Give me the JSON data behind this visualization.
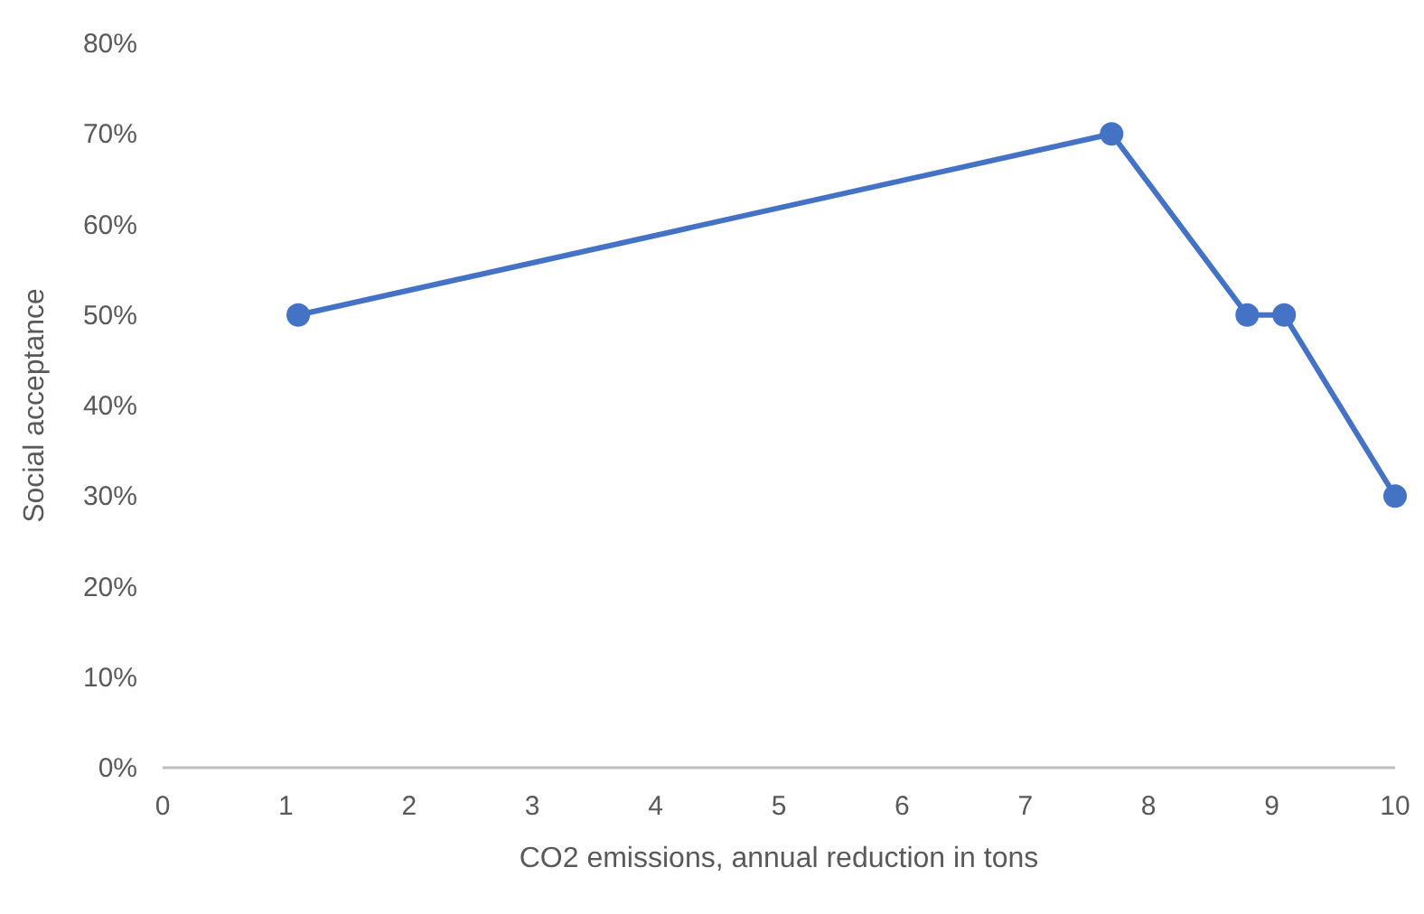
{
  "chart_data": {
    "type": "line",
    "xlabel": "CO2 emissions, annual reduction in tons",
    "ylabel": "Social acceptance",
    "x": [
      1.1,
      7.7,
      8.8,
      9.1,
      10
    ],
    "series": [
      {
        "color": "#4472c4",
        "values": [
          50,
          70,
          50,
          50,
          30
        ]
      }
    ],
    "xlim": [
      0,
      10
    ],
    "xticks": [
      0,
      1,
      2,
      3,
      4,
      5,
      6,
      7,
      8,
      9,
      10
    ],
    "ylim": [
      0,
      80
    ],
    "yticks": [
      {
        "value": 0,
        "label": "0%"
      },
      {
        "value": 10,
        "label": "10%"
      },
      {
        "value": 20,
        "label": "20%"
      },
      {
        "value": 30,
        "label": "30%"
      },
      {
        "value": 40,
        "label": "40%"
      },
      {
        "value": 50,
        "label": "50%"
      },
      {
        "value": 60,
        "label": "60%"
      },
      {
        "value": 70,
        "label": "70%"
      },
      {
        "value": 80,
        "label": "80%"
      }
    ],
    "grid": false,
    "marker": "circle",
    "line_style": "solid"
  }
}
